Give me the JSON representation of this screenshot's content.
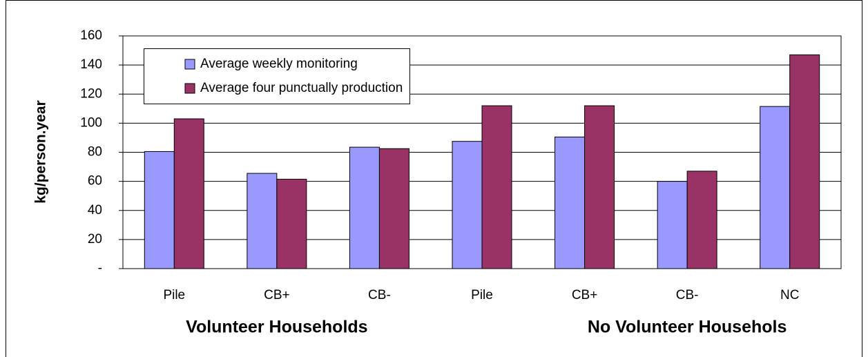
{
  "chart_data": {
    "type": "bar",
    "y_label": "kg/person.year",
    "categories": [
      "Pile",
      "CB+",
      "CB-",
      "Pile",
      "CB+",
      "CB-",
      "NC"
    ],
    "group_labels": [
      "Volunteer Households",
      "No Volunteer Househols"
    ],
    "series": [
      {
        "name": "Average weekly monitoring",
        "color": "#9999ff",
        "values": [
          80.5,
          65.5,
          83.5,
          87.5,
          90.5,
          60,
          111.5
        ]
      },
      {
        "name": "Average four punctually production",
        "color": "#993366",
        "values": [
          103,
          61.5,
          82.5,
          112,
          112,
          67,
          147
        ]
      }
    ],
    "ylim": [
      0,
      160
    ],
    "yticks": [
      {
        "value": 0,
        "label": "-"
      },
      20,
      40,
      60,
      80,
      100,
      120,
      140,
      160
    ],
    "grid": true
  }
}
